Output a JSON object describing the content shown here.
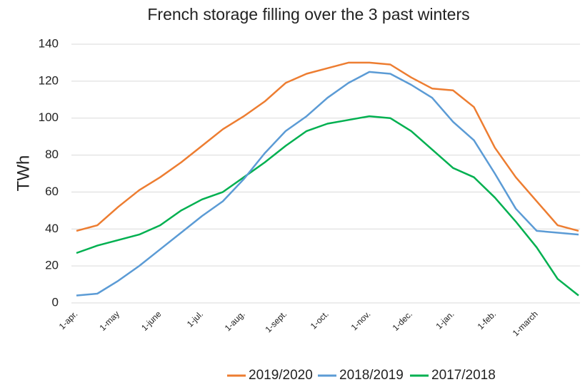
{
  "chart_data": {
    "type": "line",
    "title": "French storage filling over the 3 past winters",
    "y_label": "TWh",
    "categories": [
      "1-apr.",
      null,
      "1-may",
      null,
      "1-june",
      null,
      "1-jul.",
      null,
      "1-aug.",
      null,
      "1-sept.",
      null,
      "1-oct.",
      null,
      "1-nov.",
      null,
      "1-dec.",
      null,
      "1-jan.",
      null,
      "1-feb.",
      null,
      "1-march",
      null,
      null
    ],
    "series": [
      {
        "name": "2019/2020",
        "color": "#ed7d31",
        "values": [
          39,
          42,
          52,
          61,
          68,
          76,
          85,
          94,
          101,
          109,
          119,
          124,
          127,
          130,
          130,
          129,
          122,
          116,
          115,
          106,
          84,
          68,
          55,
          42,
          39
        ]
      },
      {
        "name": "2018/2019",
        "color": "#5b9bd5",
        "values": [
          4,
          5,
          12,
          20,
          29,
          38,
          47,
          55,
          67,
          81,
          93,
          101,
          111,
          119,
          125,
          124,
          118,
          111,
          98,
          88,
          70,
          51,
          39,
          38,
          37
        ]
      },
      {
        "name": "2017/2018",
        "color": "#00b050",
        "values": [
          27,
          31,
          34,
          37,
          42,
          50,
          56,
          60,
          68,
          76,
          85,
          93,
          97,
          99,
          101,
          100,
          93,
          83,
          73,
          68,
          57,
          44,
          30,
          13,
          4
        ]
      }
    ],
    "ylim": [
      0,
      140
    ],
    "yticks": [
      0,
      20,
      40,
      60,
      80,
      100,
      120,
      140
    ],
    "grid": true,
    "legend": "bottom"
  }
}
